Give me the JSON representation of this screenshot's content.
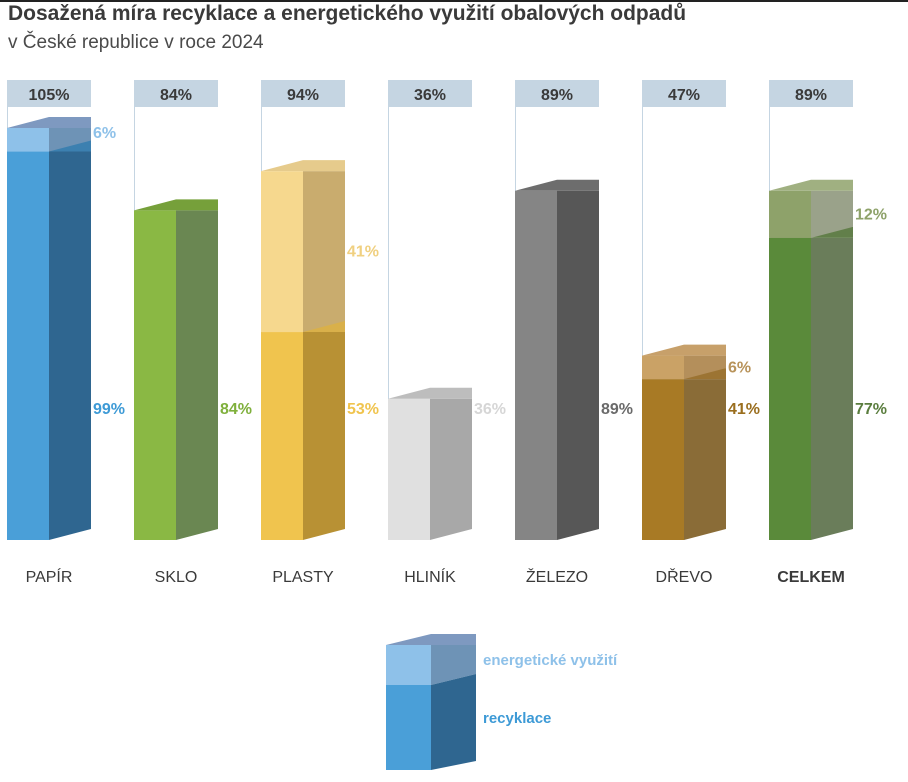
{
  "chart_data": {
    "type": "bar",
    "stacked": true,
    "title": "Dosažená míra recyklace a energetického využití obalových odpadů",
    "subtitle": "v České republice v roce 2024",
    "unit": "%",
    "categories": [
      "PAPÍR",
      "SKLO",
      "PLASTY",
      "HLINÍK",
      "ŽELEZO",
      "DŘEVO",
      "CELKEM"
    ],
    "totals": [
      "105%",
      "84%",
      "94%",
      "36%",
      "89%",
      "47%",
      "89%"
    ],
    "series": [
      {
        "name": "recyklace",
        "values": [
          99,
          84,
          53,
          36,
          89,
          41,
          77
        ],
        "labels": [
          "99%",
          "84%",
          "53%",
          "36%",
          "89%",
          "41%",
          "77%"
        ]
      },
      {
        "name": "energetické využití",
        "values": [
          6,
          0,
          41,
          0,
          0,
          6,
          12
        ],
        "labels": [
          "6%",
          "",
          "41%",
          "",
          "",
          "6%",
          "12%"
        ]
      }
    ],
    "category_colors": [
      {
        "front": "#4a9fd8",
        "side": "#2f6690",
        "top": "#3c80b0",
        "upper_front": "#8ec1e9",
        "upper_side": "#6e93b6",
        "upper_top": "#7e99c0",
        "label": "#3d9ad6",
        "upper_label": "#8ec1e9"
      },
      {
        "front": "#8ab844",
        "side": "#6a8752",
        "top": "#76a03a",
        "upper_front": "",
        "upper_side": "",
        "upper_top": "",
        "label": "#7fb03c",
        "upper_label": ""
      },
      {
        "front": "#f0c44e",
        "side": "#b89134",
        "top": "#d9b04a",
        "upper_front": "#f6d88e",
        "upper_side": "#c9ac6e",
        "upper_top": "#e6cb8c",
        "label": "#f0c44e",
        "upper_label": "#f0d080"
      },
      {
        "front": "#e0e0e0",
        "side": "#a8a8a8",
        "top": "#bdbdbd",
        "upper_front": "",
        "upper_side": "",
        "upper_top": "",
        "label": "#d6d6d6",
        "upper_label": ""
      },
      {
        "front": "#858585",
        "side": "#575757",
        "top": "#6d6d6d",
        "upper_front": "",
        "upper_side": "",
        "upper_top": "",
        "label": "#6a6a6a",
        "upper_label": ""
      },
      {
        "front": "#a87a25",
        "side": "#8a6c37",
        "top": "#9c7433",
        "upper_front": "#caa266",
        "upper_side": "#b48f5b",
        "upper_top": "#c7a06a",
        "label": "#9a6e1e",
        "upper_label": "#b8935a"
      },
      {
        "front": "#5a8a3a",
        "side": "#6a7d5a",
        "top": "#627f4a",
        "upper_front": "#8ea26a",
        "upper_side": "#9aa28a",
        "upper_top": "#a0b081",
        "label": "#5a7d3e",
        "upper_label": "#8ea26a"
      }
    ],
    "total_box_color": "#c5d5e2",
    "ylim": [
      0,
      105
    ],
    "grid": false,
    "legend": {
      "position": "bottom-center",
      "items": [
        {
          "label": "energetické využití",
          "color": "#8ec1e9"
        },
        {
          "label": "recyklace",
          "color": "#3d9ad6"
        }
      ]
    }
  }
}
